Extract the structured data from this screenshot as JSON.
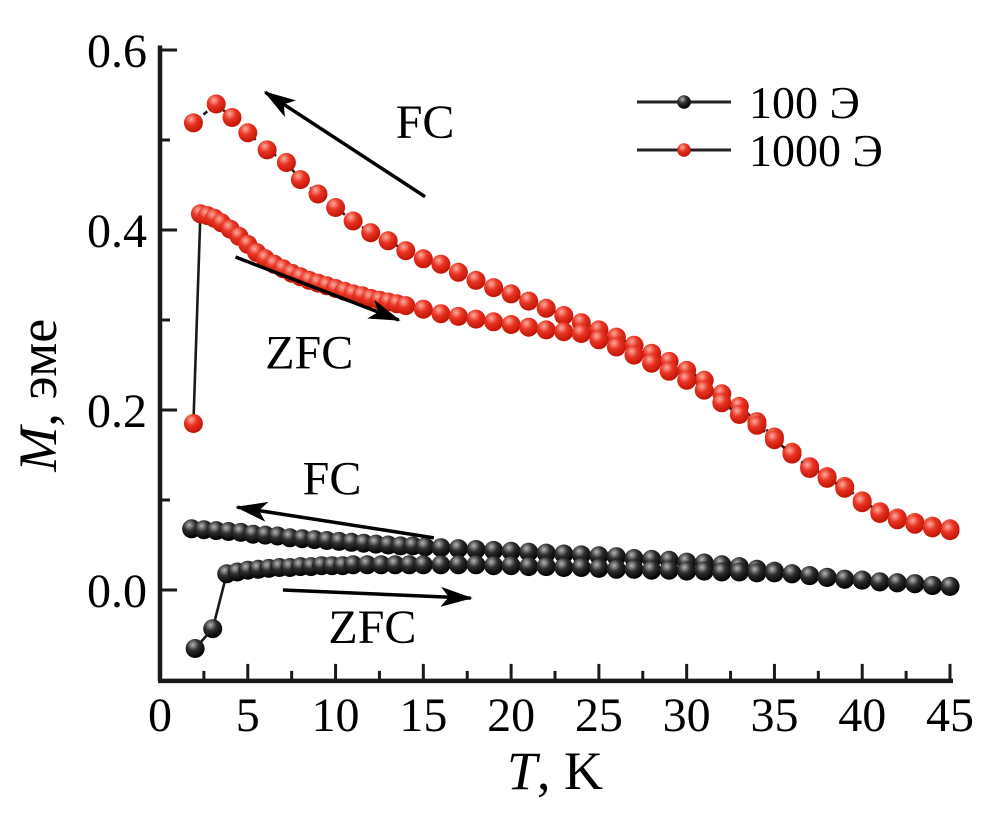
{
  "chart_data": {
    "type": "scatter",
    "title": "",
    "xlabel": "T, K",
    "ylabel": "M, эме",
    "xlim": [
      0,
      45
    ],
    "ylim": [
      -0.101,
      0.605
    ],
    "grid": false,
    "legend_position": "top-right",
    "x_axis": {
      "label_italic": "T",
      "label_rest": ", K",
      "major_ticks": [
        0,
        5,
        10,
        15,
        20,
        25,
        30,
        35,
        40,
        45
      ],
      "minor_ticks": [
        2.5,
        7.5,
        12.5,
        17.5,
        22.5,
        27.5,
        32.5,
        37.5,
        42.5
      ]
    },
    "y_axis": {
      "label_italic": "M",
      "label_rest": ", эме",
      "major_ticks": [
        {
          "v": 0.0,
          "label": "0.0"
        },
        {
          "v": 0.2,
          "label": "0.2"
        },
        {
          "v": 0.4,
          "label": "0.4"
        },
        {
          "v": 0.6,
          "label": "0.6"
        }
      ],
      "minor_ticks": [
        0.1,
        0.3,
        0.5
      ]
    },
    "colors": {
      "red": "#e93322",
      "red_hi": "#fbab9e",
      "red_dk": "#c01405",
      "black": "#2e2e2e",
      "black_hi": "#b5b5b5",
      "black_dk": "#000000",
      "axis": "#1a1a1a",
      "connector": "#1a1a1a"
    },
    "legend": [
      {
        "label": "100 Э",
        "color_key": "black"
      },
      {
        "label": "1000 Э",
        "color_key": "red"
      }
    ],
    "series": [
      {
        "id": "red-fc",
        "name": "1000 Э FC",
        "color_key": "red",
        "solid_segments": 0,
        "points": [
          [
            1.9,
            0.519
          ],
          [
            3.2,
            0.54
          ],
          [
            4.1,
            0.525
          ],
          [
            5,
            0.508
          ],
          [
            6.1,
            0.489
          ],
          [
            7.2,
            0.475
          ],
          [
            8,
            0.456
          ],
          [
            9,
            0.44
          ],
          [
            10,
            0.425
          ],
          [
            11,
            0.41
          ],
          [
            12,
            0.397
          ],
          [
            13,
            0.388
          ],
          [
            14,
            0.377
          ],
          [
            15,
            0.368
          ],
          [
            16,
            0.362
          ],
          [
            17,
            0.353
          ],
          [
            18,
            0.344
          ],
          [
            19,
            0.336
          ],
          [
            20,
            0.329
          ],
          [
            21,
            0.321
          ],
          [
            22,
            0.313
          ],
          [
            23,
            0.305
          ],
          [
            24,
            0.297
          ],
          [
            25,
            0.289
          ],
          [
            26,
            0.281
          ],
          [
            27,
            0.272
          ],
          [
            28,
            0.263
          ],
          [
            29,
            0.254
          ],
          [
            30,
            0.244
          ],
          [
            31,
            0.233
          ],
          [
            32,
            0.218
          ],
          [
            33,
            0.204
          ],
          [
            34,
            0.187
          ],
          [
            35,
            0.17
          ],
          [
            36,
            0.153
          ],
          [
            37,
            0.137
          ],
          [
            38,
            0.126
          ],
          [
            39,
            0.115
          ],
          [
            40,
            0.099
          ],
          [
            41,
            0.087
          ],
          [
            42,
            0.08
          ],
          [
            43,
            0.075
          ],
          [
            44,
            0.071
          ],
          [
            45,
            0.068
          ]
        ]
      },
      {
        "id": "red-zfc",
        "name": "1000 Э ZFC",
        "color_key": "red",
        "solid_segments": 1,
        "points": [
          [
            1.9,
            0.185
          ],
          [
            2.3,
            0.418
          ],
          [
            2.7,
            0.416
          ],
          [
            3.1,
            0.413
          ],
          [
            3.5,
            0.408
          ],
          [
            4,
            0.401
          ],
          [
            4.5,
            0.393
          ],
          [
            5,
            0.384
          ],
          [
            5.5,
            0.375
          ],
          [
            6,
            0.368
          ],
          [
            6.5,
            0.362
          ],
          [
            7,
            0.357
          ],
          [
            7.5,
            0.352
          ],
          [
            8,
            0.348
          ],
          [
            8.5,
            0.344
          ],
          [
            9,
            0.341
          ],
          [
            9.5,
            0.338
          ],
          [
            10,
            0.335
          ],
          [
            10.5,
            0.332
          ],
          [
            11,
            0.329
          ],
          [
            11.5,
            0.327
          ],
          [
            12,
            0.324
          ],
          [
            12.5,
            0.322
          ],
          [
            13,
            0.32
          ],
          [
            13.5,
            0.318
          ],
          [
            14,
            0.316
          ],
          [
            15,
            0.312
          ],
          [
            16,
            0.307
          ],
          [
            17,
            0.304
          ],
          [
            18,
            0.301
          ],
          [
            19,
            0.298
          ],
          [
            20,
            0.295
          ],
          [
            21,
            0.292
          ],
          [
            22,
            0.289
          ],
          [
            23,
            0.287
          ],
          [
            24,
            0.285
          ],
          [
            25,
            0.278
          ],
          [
            26,
            0.27
          ],
          [
            27,
            0.261
          ],
          [
            28,
            0.252
          ],
          [
            29,
            0.243
          ],
          [
            30,
            0.233
          ],
          [
            31,
            0.222
          ],
          [
            32,
            0.208
          ],
          [
            33,
            0.195
          ],
          [
            34,
            0.183
          ],
          [
            35,
            0.167
          ],
          [
            36,
            0.151
          ],
          [
            37,
            0.135
          ],
          [
            38,
            0.124
          ],
          [
            39,
            0.113
          ],
          [
            40,
            0.097
          ],
          [
            41,
            0.085
          ],
          [
            42,
            0.078
          ],
          [
            43,
            0.073
          ],
          [
            44,
            0.069
          ],
          [
            45,
            0.066
          ]
        ]
      },
      {
        "id": "black-fc",
        "name": "100 Э FC",
        "color_key": "black",
        "solid_segments": 0,
        "points": [
          [
            1.8,
            0.068
          ],
          [
            2.5,
            0.067
          ],
          [
            3.2,
            0.066
          ],
          [
            3.9,
            0.065
          ],
          [
            4.6,
            0.064
          ],
          [
            5.3,
            0.062
          ],
          [
            6,
            0.061
          ],
          [
            6.7,
            0.06
          ],
          [
            7.4,
            0.058
          ],
          [
            8.1,
            0.057
          ],
          [
            8.8,
            0.056
          ],
          [
            9.5,
            0.055
          ],
          [
            10.2,
            0.054
          ],
          [
            10.9,
            0.053
          ],
          [
            11.6,
            0.052
          ],
          [
            12.3,
            0.051
          ],
          [
            13,
            0.05
          ],
          [
            13.7,
            0.049
          ],
          [
            14.4,
            0.049
          ],
          [
            15.1,
            0.048
          ],
          [
            16,
            0.047
          ],
          [
            17,
            0.046
          ],
          [
            18,
            0.045
          ],
          [
            19,
            0.044
          ],
          [
            20,
            0.043
          ],
          [
            21,
            0.042
          ],
          [
            22,
            0.041
          ],
          [
            23,
            0.04
          ],
          [
            24,
            0.039
          ],
          [
            25,
            0.038
          ],
          [
            26,
            0.037
          ],
          [
            27,
            0.035
          ],
          [
            28,
            0.034
          ],
          [
            29,
            0.033
          ],
          [
            30,
            0.031
          ],
          [
            31,
            0.03
          ],
          [
            32,
            0.028
          ],
          [
            33,
            0.026
          ],
          [
            34,
            0.023
          ],
          [
            35,
            0.021
          ],
          [
            36,
            0.018
          ],
          [
            37,
            0.016
          ],
          [
            38,
            0.014
          ],
          [
            39,
            0.012
          ],
          [
            40,
            0.011
          ],
          [
            41,
            0.009
          ],
          [
            42,
            0.008
          ],
          [
            43,
            0.007
          ],
          [
            44,
            0.005
          ],
          [
            45,
            0.004
          ]
        ]
      },
      {
        "id": "black-zfc",
        "name": "100 Э ZFC",
        "color_key": "black",
        "solid_segments": 2,
        "points": [
          [
            2,
            -0.065
          ],
          [
            3,
            -0.043
          ],
          [
            3.8,
            0.018
          ],
          [
            4.4,
            0.02
          ],
          [
            5,
            0.022
          ],
          [
            5.6,
            0.023
          ],
          [
            6.2,
            0.024
          ],
          [
            6.8,
            0.025
          ],
          [
            7.4,
            0.025
          ],
          [
            8,
            0.026
          ],
          [
            8.6,
            0.026
          ],
          [
            9.2,
            0.027
          ],
          [
            9.8,
            0.027
          ],
          [
            10.4,
            0.027
          ],
          [
            11,
            0.028
          ],
          [
            11.8,
            0.028
          ],
          [
            12.6,
            0.028
          ],
          [
            13.4,
            0.028
          ],
          [
            14.2,
            0.028
          ],
          [
            15,
            0.028
          ],
          [
            16,
            0.028
          ],
          [
            17,
            0.028
          ],
          [
            18,
            0.028
          ],
          [
            19,
            0.027
          ],
          [
            20,
            0.027
          ],
          [
            21,
            0.026
          ],
          [
            22,
            0.026
          ],
          [
            23,
            0.025
          ],
          [
            24,
            0.025
          ],
          [
            25,
            0.024
          ],
          [
            26,
            0.023
          ],
          [
            27,
            0.023
          ],
          [
            28,
            0.022
          ],
          [
            29,
            0.022
          ],
          [
            30,
            0.021
          ],
          [
            31,
            0.021
          ],
          [
            32,
            0.02
          ],
          [
            33,
            0.02
          ],
          [
            34,
            0.019
          ],
          [
            35,
            0.019
          ],
          [
            36,
            0.018
          ],
          [
            37,
            0.016
          ],
          [
            38,
            0.014
          ],
          [
            39,
            0.012
          ],
          [
            40,
            0.011
          ],
          [
            41,
            0.009
          ],
          [
            42,
            0.008
          ],
          [
            43,
            0.007
          ],
          [
            44,
            0.005
          ],
          [
            45,
            0.004
          ]
        ]
      }
    ],
    "annotations": [
      {
        "id": "fc-red",
        "text": "FC",
        "t": 15.1,
        "m": 0.52
      },
      {
        "id": "zfc-red",
        "text": "ZFC",
        "t": 8.5,
        "m": 0.264
      },
      {
        "id": "fc-black",
        "text": "FC",
        "t": 9.8,
        "m": 0.124
      },
      {
        "id": "zfc-black",
        "text": "ZFC",
        "t": 12.1,
        "m": -0.041
      }
    ],
    "arrows": [
      {
        "id": "fc-red-arrow",
        "t1": 15.1,
        "m1": 0.437,
        "t2": 6.0,
        "m2": 0.553
      },
      {
        "id": "zfc-red-arrow",
        "t1": 4.3,
        "m1": 0.37,
        "t2": 13.6,
        "m2": 0.3
      },
      {
        "id": "fc-black-arrow",
        "t1": 15.6,
        "m1": 0.058,
        "t2": 4.4,
        "m2": 0.092
      },
      {
        "id": "zfc-black-arrow",
        "t1": 7.0,
        "m1": 0.0,
        "t2": 17.7,
        "m2": -0.009
      }
    ]
  }
}
